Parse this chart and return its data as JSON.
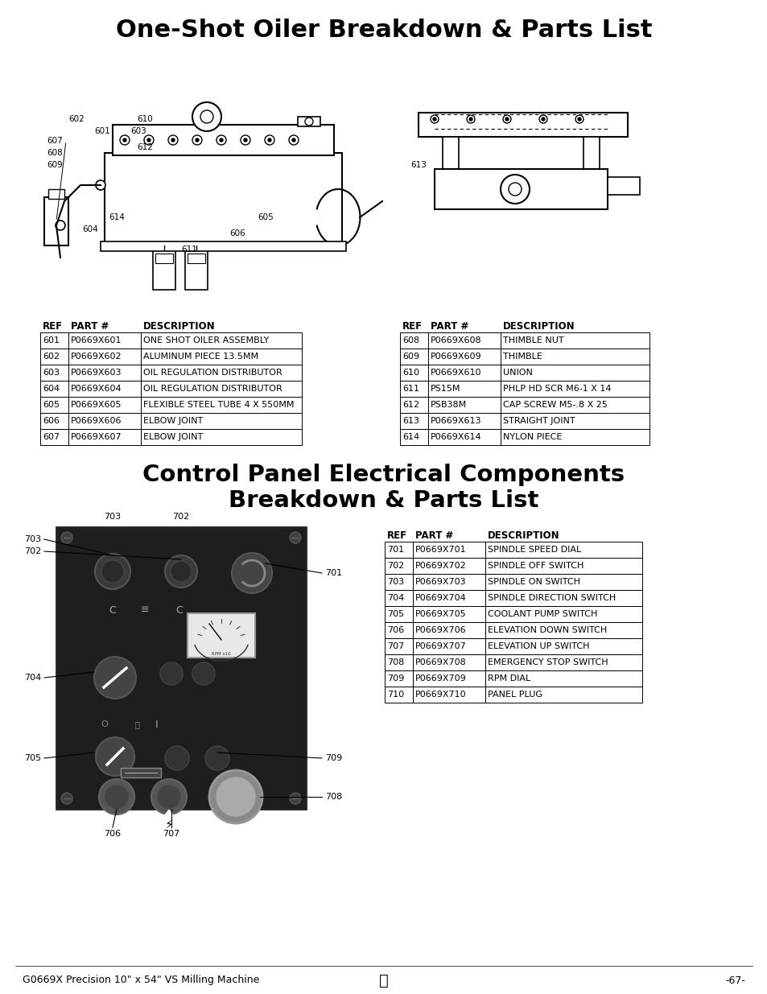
{
  "title1": "One-Shot Oiler Breakdown & Parts List",
  "title2_line1": "Control Panel Electrical Components",
  "title2_line2": "Breakdown & Parts List",
  "footer_left": "G0669X Precision 10\" x 54\" VS Milling Machine",
  "footer_right": "-67-",
  "oiler_table_left": {
    "headers": [
      "REF",
      "PART #",
      "DESCRIPTION"
    ],
    "rows": [
      [
        "601",
        "P0669X601",
        "ONE SHOT OILER ASSEMBLY"
      ],
      [
        "602",
        "P0669X602",
        "ALUMINUM PIECE 13.5MM"
      ],
      [
        "603",
        "P0669X603",
        "OIL REGULATION DISTRIBUTOR"
      ],
      [
        "604",
        "P0669X604",
        "OIL REGULATION DISTRIBUTOR"
      ],
      [
        "605",
        "P0669X605",
        "FLEXIBLE STEEL TUBE 4 X 550MM"
      ],
      [
        "606",
        "P0669X606",
        "ELBOW JOINT"
      ],
      [
        "607",
        "P0669X607",
        "ELBOW JOINT"
      ]
    ]
  },
  "oiler_table_right": {
    "headers": [
      "REF",
      "PART #",
      "DESCRIPTION"
    ],
    "rows": [
      [
        "608",
        "P0669X608",
        "THIMBLE NUT"
      ],
      [
        "609",
        "P0669X609",
        "THIMBLE"
      ],
      [
        "610",
        "P0669X610",
        "UNION"
      ],
      [
        "611",
        "PS15M",
        "PHLP HD SCR M6-1 X 14"
      ],
      [
        "612",
        "PSB38M",
        "CAP SCREW M5-.8 X 25"
      ],
      [
        "613",
        "P0669X613",
        "STRAIGHT JOINT"
      ],
      [
        "614",
        "P0669X614",
        "NYLON PIECE"
      ]
    ]
  },
  "control_table": {
    "headers": [
      "REF",
      "PART #",
      "DESCRIPTION"
    ],
    "rows": [
      [
        "701",
        "P0669X701",
        "SPINDLE SPEED DIAL"
      ],
      [
        "702",
        "P0669X702",
        "SPINDLE OFF SWITCH"
      ],
      [
        "703",
        "P0669X703",
        "SPINDLE ON SWITCH"
      ],
      [
        "704",
        "P0669X704",
        "SPINDLE DIRECTION SWITCH"
      ],
      [
        "705",
        "P0669X705",
        "COOLANT PUMP SWITCH"
      ],
      [
        "706",
        "P0669X706",
        "ELEVATION DOWN SWITCH"
      ],
      [
        "707",
        "P0669X707",
        "ELEVATION UP SWITCH"
      ],
      [
        "708",
        "P0669X708",
        "EMERGENCY STOP SWITCH"
      ],
      [
        "709",
        "P0669X709",
        "RPM DIAL"
      ],
      [
        "710",
        "P0669X710",
        "PANEL PLUG"
      ]
    ]
  },
  "bg_color": "#ffffff"
}
